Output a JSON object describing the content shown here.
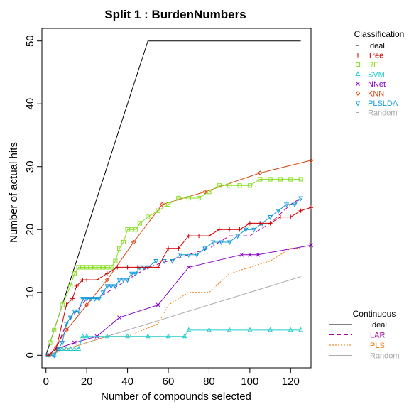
{
  "chart_data": {
    "type": "line",
    "title": "Split 1 : BurdenNumbers",
    "xlabel": "Number of compounds selected",
    "ylabel": "Number of actual hits",
    "xlim": [
      -2,
      130
    ],
    "ylim": [
      -2,
      52
    ],
    "xticks": [
      0,
      20,
      40,
      60,
      80,
      100,
      120
    ],
    "yticks": [
      0,
      10,
      20,
      30,
      40,
      50
    ],
    "grid": false,
    "legend_placement": "right",
    "legends": [
      {
        "title": "Classification",
        "entries": [
          {
            "label": "Ideal",
            "color": "#000000",
            "marker": "-"
          },
          {
            "label": "Tree",
            "color": "#cc0000",
            "marker": "+"
          },
          {
            "label": "RF",
            "color": "#88dd22",
            "marker": "square"
          },
          {
            "label": "SVM",
            "color": "#22cccc",
            "marker": "triangle"
          },
          {
            "label": "NNet",
            "color": "#8800cc",
            "marker": "x"
          },
          {
            "label": "KNN",
            "color": "#dd4411",
            "marker": "diamond"
          },
          {
            "label": "PLSLDA",
            "color": "#1199dd",
            "marker": "nabla"
          },
          {
            "label": "Random",
            "color": "#aaaaaa",
            "marker": "-"
          }
        ]
      },
      {
        "title": "Continuous",
        "entries": [
          {
            "label": "Ideal",
            "color": "#000000",
            "dash": "solid"
          },
          {
            "label": "LAR",
            "color": "#aa00aa",
            "dash": "dashed"
          },
          {
            "label": "PLS",
            "color": "#ee7700",
            "dash": "dotted"
          },
          {
            "label": "Random",
            "color": "#aaaaaa",
            "dash": "solid"
          }
        ]
      }
    ],
    "series": [
      {
        "name": "Ideal",
        "color": "#000000",
        "marker": "none",
        "dash": "solid",
        "x": [
          0,
          50,
          125
        ],
        "y": [
          0,
          50,
          50
        ]
      },
      {
        "name": "Random",
        "color": "#aaaaaa",
        "marker": "none",
        "dash": "solid",
        "x": [
          0,
          125
        ],
        "y": [
          0,
          12.5
        ]
      },
      {
        "name": "PLS",
        "color": "#ee7700",
        "marker": "none",
        "dash": "dotted",
        "x": [
          1,
          10,
          20,
          30,
          40,
          55,
          60,
          70,
          80,
          90,
          100,
          110,
          120,
          125
        ],
        "y": [
          0,
          1,
          2,
          3,
          3,
          5,
          8,
          10,
          10,
          13,
          14,
          15,
          17,
          17
        ]
      },
      {
        "name": "LAR",
        "color": "#aa00aa",
        "marker": "none",
        "dash": "dashed",
        "x": [
          1,
          5,
          10,
          15,
          20,
          25,
          30,
          40,
          50,
          60,
          70,
          80,
          90,
          100,
          110,
          120,
          125
        ],
        "y": [
          0,
          1,
          5,
          7,
          9,
          9,
          10,
          12,
          14,
          15,
          16,
          17,
          19,
          19,
          21,
          24,
          25
        ]
      },
      {
        "name": "NNet",
        "color": "#8800cc",
        "marker": "x",
        "dash": "solid",
        "x": [
          1,
          5,
          14,
          25,
          36,
          55,
          70,
          96,
          100,
          104,
          130
        ],
        "y": [
          0,
          1,
          2,
          3,
          6,
          8,
          14,
          16,
          16,
          16,
          17.5
        ]
      },
      {
        "name": "SVM",
        "color": "#22cccc",
        "marker": "triangle",
        "dash": "solid",
        "x": [
          1,
          4,
          6,
          8,
          10,
          12,
          14,
          16,
          18,
          20,
          30,
          40,
          50,
          60,
          68,
          70,
          80,
          90,
          100,
          110,
          120,
          125
        ],
        "y": [
          0,
          0,
          1,
          1,
          1,
          1,
          1,
          1,
          3,
          3,
          3,
          3,
          3,
          3,
          3,
          4,
          4,
          4,
          4,
          4,
          4,
          4
        ]
      },
      {
        "name": "KNN",
        "color": "#dd4411",
        "marker": "diamond",
        "dash": "solid",
        "x": [
          2,
          10,
          20,
          30,
          43,
          57,
          78,
          105,
          130
        ],
        "y": [
          0,
          4,
          8,
          12,
          18,
          24,
          26,
          29,
          31
        ]
      },
      {
        "name": "RF",
        "color": "#88dd22",
        "marker": "square",
        "dash": "solid",
        "x": [
          2,
          4,
          8,
          12,
          14,
          16,
          18,
          20,
          22,
          24,
          26,
          28,
          30,
          32,
          34,
          36,
          38,
          40,
          42,
          44,
          46,
          50,
          55,
          60,
          65,
          70,
          75,
          80,
          85,
          90,
          95,
          100,
          105,
          110,
          115,
          120,
          125
        ],
        "y": [
          2,
          4,
          8,
          11,
          13,
          14,
          14,
          14,
          14,
          14,
          14,
          14,
          14,
          14,
          15,
          17,
          18,
          20,
          20,
          20,
          21,
          22,
          23,
          24,
          25,
          25,
          25,
          26,
          27,
          27,
          27,
          27,
          28,
          28,
          28,
          28,
          28
        ]
      },
      {
        "name": "PLSLDA",
        "color": "#1199dd",
        "marker": "nabla",
        "dash": "solid",
        "x": [
          1,
          4,
          6,
          8,
          10,
          12,
          14,
          16,
          18,
          20,
          22,
          24,
          26,
          28,
          30,
          32,
          34,
          36,
          38,
          40,
          42,
          44,
          46,
          48,
          50,
          54,
          58,
          62,
          66,
          70,
          74,
          78,
          82,
          86,
          90,
          94,
          98,
          102,
          106,
          110,
          114,
          118,
          122,
          125
        ],
        "y": [
          0,
          0,
          1,
          2,
          5,
          6,
          7,
          7,
          9,
          9,
          9,
          9,
          9,
          10,
          11,
          11,
          11,
          12,
          12,
          12,
          13,
          13,
          14,
          14,
          14,
          15,
          15,
          15,
          16,
          16,
          16,
          17,
          18,
          18,
          18,
          19,
          20,
          20,
          21,
          22,
          23,
          24,
          24,
          25
        ]
      },
      {
        "name": "Tree",
        "color": "#cc0000",
        "marker": "+",
        "dash": "solid",
        "x": [
          1,
          5,
          10,
          13,
          15,
          18,
          20,
          25,
          30,
          35,
          40,
          45,
          50,
          55,
          60,
          65,
          70,
          75,
          80,
          85,
          90,
          95,
          100,
          105,
          110,
          115,
          120,
          125,
          130
        ],
        "y": [
          0,
          1,
          8,
          9,
          11,
          12,
          12,
          12,
          13,
          14,
          14,
          14,
          14,
          14,
          17,
          17,
          19,
          19,
          19,
          20,
          20,
          20,
          21,
          21,
          21,
          22,
          22,
          23,
          23.5
        ]
      }
    ]
  }
}
